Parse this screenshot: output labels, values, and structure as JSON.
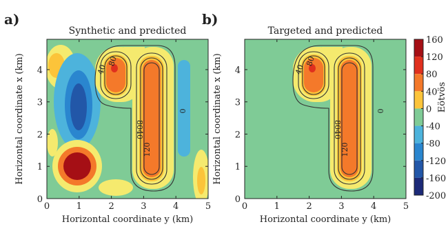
{
  "chart_data": [
    {
      "type": "heatmap",
      "panel_label": "a)",
      "title": "Synthetic and predicted",
      "xlabel": "Horizontal coordinate y (km)",
      "ylabel": "Horizontal coordinate x (km)",
      "xlim": [
        0,
        5
      ],
      "ylim": [
        0,
        4.94
      ],
      "xticks": [
        0,
        1,
        2,
        3,
        4,
        5
      ],
      "yticks": [
        0,
        1,
        2,
        3,
        4
      ],
      "contour_labels": [
        40,
        80,
        0,
        80,
        40,
        120
      ]
    },
    {
      "type": "heatmap",
      "panel_label": "b)",
      "title": "Targeted and predicted",
      "xlabel": "Horizontal coordinate y (km)",
      "ylabel": "Horizontal coordinate x (km)",
      "xlim": [
        0,
        5
      ],
      "ylim": [
        0,
        4.94
      ],
      "xticks": [
        0,
        1,
        2,
        3,
        4,
        5
      ],
      "yticks": [
        0,
        1,
        2,
        3,
        4
      ],
      "contour_labels": [
        40,
        80,
        0,
        80,
        40,
        120
      ]
    },
    {
      "type": "colorbar",
      "label": "Eötvös",
      "lim": [
        -200,
        160
      ],
      "ticks": [
        160,
        120,
        80,
        40,
        0,
        -40,
        -80,
        -120,
        -160,
        -200
      ],
      "colors": [
        "#a50f15",
        "#e0301e",
        "#f4792a",
        "#fcc43a",
        "#7fcb96",
        "#4db3dc",
        "#2a86cf",
        "#2257a8",
        "#1c2a78"
      ]
    }
  ]
}
